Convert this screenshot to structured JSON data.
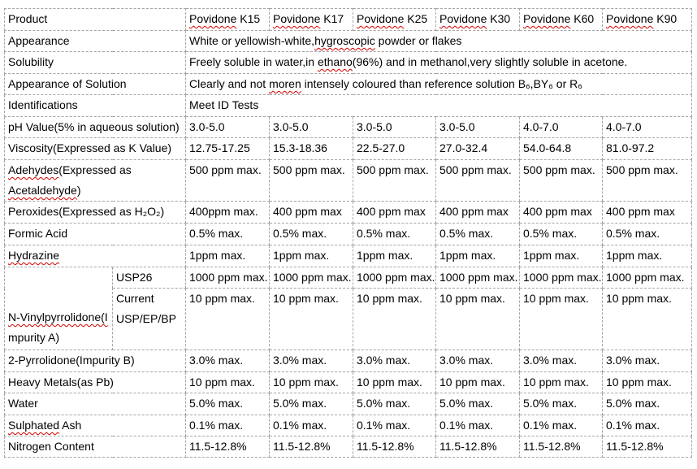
{
  "colors": {
    "border": "#a5a5a5",
    "squiggle": "#d40000",
    "text": "#000000"
  },
  "rows": [
    {
      "id": "product",
      "label": "Product",
      "cells": [
        [
          {
            "t": "Povidone",
            "sp": true
          },
          {
            "t": " K15"
          }
        ],
        [
          {
            "t": "Povidone",
            "sp": true
          },
          {
            "t": " K17"
          }
        ],
        [
          {
            "t": "Povidone",
            "sp": true
          },
          {
            "t": " K25"
          }
        ],
        [
          {
            "t": "Povidone",
            "sp": true
          },
          {
            "t": " K30"
          }
        ],
        [
          {
            "t": "Povidone",
            "sp": true
          },
          {
            "t": " K60"
          }
        ],
        [
          {
            "t": "Povidone",
            "sp": true
          },
          {
            "t": " K90"
          }
        ]
      ]
    },
    {
      "id": "appearance",
      "label": "Appearance",
      "merged": [
        {
          "t": "White or yellowish-white,"
        },
        {
          "t": "hygroscopic",
          "sp": true
        },
        {
          "t": " powder or flakes"
        }
      ]
    },
    {
      "id": "solubility",
      "label": "Solubility",
      "merged": [
        {
          "t": "Freely soluble in water,in "
        },
        {
          "t": "ethano",
          "sp": true
        },
        {
          "t": "(96%) and in methanol,very slightly soluble in acetone."
        }
      ]
    },
    {
      "id": "appearance_of_solution",
      "label": "Appearance of Solution",
      "merged": [
        {
          "t": "Clearly and not "
        },
        {
          "t": "moren",
          "sp": true
        },
        {
          "t": " intensely coloured than reference solution B₆,BY₆ or R₆"
        }
      ]
    },
    {
      "id": "identifications",
      "label": "Identifications",
      "merged": "Meet ID Tests"
    },
    {
      "id": "ph_value",
      "label": "pH Value(5% in aqueous solution)",
      "cells": [
        "3.0-5.0",
        "3.0-5.0",
        "3.0-5.0",
        "3.0-5.0",
        "4.0-7.0",
        "4.0-7.0"
      ]
    },
    {
      "id": "viscosity",
      "label": "Viscosity(Expressed as K Value)",
      "cells": [
        "12.75-17.25",
        "15.3-18.36",
        "22.5-27.0",
        "27.0-32.4",
        "54.0-64.8",
        "81.0-97.2"
      ]
    },
    {
      "id": "aldehydes",
      "label": [
        {
          "t": "Adehydes",
          "sp": true
        },
        {
          "t": "(Expressed as"
        },
        {
          "br": true
        },
        {
          "t": "Acetaldehyde",
          "sp": true
        },
        {
          "t": ")"
        }
      ],
      "cells": [
        "500 ppm max.",
        "500 ppm max.",
        "500 ppm max.",
        "500 ppm max.",
        "500 ppm max.",
        "500 ppm max."
      ]
    },
    {
      "id": "peroxides",
      "label": "Peroxides(Expressed as H₂O₂)",
      "cells": [
        "400ppm max.",
        "400 ppm max",
        "400 ppm max",
        "400 ppm max",
        "400 ppm max",
        "400 ppm max"
      ]
    },
    {
      "id": "formic_acid",
      "label": "Formic Acid",
      "cells": [
        "0.5% max.",
        "0.5% max.",
        "0.5% max.",
        "0.5% max.",
        "0.5% max.",
        "0.5% max."
      ]
    },
    {
      "id": "hydrazine",
      "label": [
        {
          "t": "Hydrazine",
          "sp": true
        }
      ],
      "cells": [
        "1ppm max.",
        "1ppm max.",
        "1ppm max.",
        "1ppm max.",
        "1ppm max.",
        "1ppm max."
      ]
    },
    {
      "id": "n_vinylpyrrolidone",
      "label": [
        {
          "t": "N-Vinylpyrrolidone(I",
          "sp": true
        },
        {
          "br": true
        },
        {
          "t": "mpurity A)"
        }
      ],
      "sub_rows": [
        {
          "id": "usp26",
          "label": "USP26",
          "cells": [
            "1000 ppm max.",
            "1000 ppm max.",
            "1000 ppm max.",
            "1000 ppm max.",
            "1000 ppm max.",
            "1000 ppm max."
          ]
        },
        {
          "id": "current_usp_ep_bp",
          "label": [
            {
              "t": "Current"
            },
            {
              "br": true
            },
            {
              "t": "USP/EP/BP"
            }
          ],
          "cells": [
            "10 ppm max.",
            "10 ppm max.",
            "10 ppm max.",
            "10 ppm max.",
            "10 ppm max.",
            "10 ppm max."
          ]
        }
      ]
    },
    {
      "id": "pyrrolidone",
      "label": "2-Pyrrolidone(Impurity B)",
      "cells": [
        "3.0% max.",
        "3.0% max.",
        "3.0% max.",
        "3.0% max.",
        "3.0% max.",
        "3.0% max."
      ]
    },
    {
      "id": "heavy_metals",
      "label": "Heavy Metals(as Pb)",
      "cells": [
        "10 ppm max.",
        "10 ppm max.",
        "10 ppm max.",
        "10 ppm max.",
        "10 ppm max.",
        "10 ppm max."
      ]
    },
    {
      "id": "water",
      "label": "Water",
      "cells": [
        "5.0% max.",
        "5.0% max.",
        "5.0% max.",
        "5.0% max.",
        "5.0% max.",
        "5.0% max."
      ]
    },
    {
      "id": "sulphated_ash",
      "label": [
        {
          "t": "Sulphated",
          "sp": true
        },
        {
          "t": " Ash"
        }
      ],
      "cells": [
        "0.1% max.",
        "0.1% max.",
        "0.1% max.",
        "0.1% max.",
        "0.1% max.",
        "0.1% max."
      ]
    },
    {
      "id": "nitrogen_content",
      "label": "Nitrogen Content",
      "cells": [
        "11.5-12.8%",
        "11.5-12.8%",
        "11.5-12.8%",
        "11.5-12.8%",
        "11.5-12.8%",
        "11.5-12.8%"
      ]
    }
  ]
}
